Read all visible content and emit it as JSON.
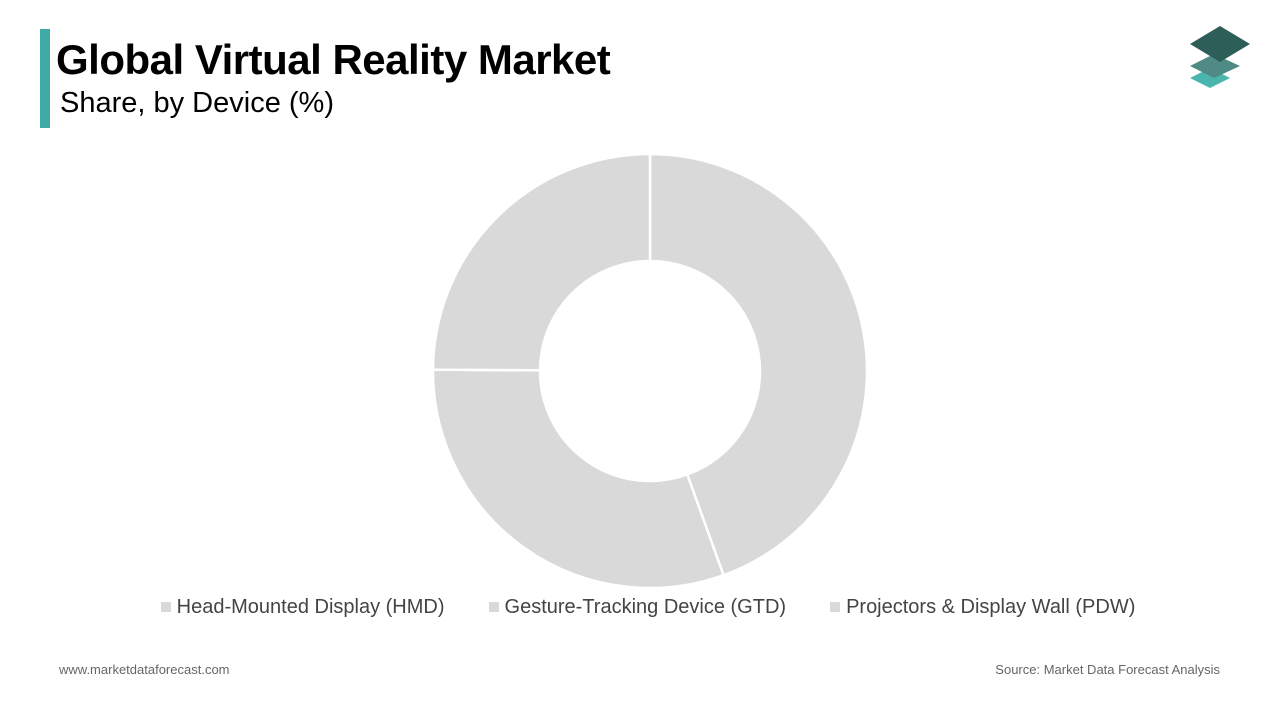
{
  "header": {
    "title": "Global Virtual Reality Market",
    "subtitle": "Share, by Device (%)"
  },
  "colors": {
    "accent": "#3fa9a4",
    "slice": "#d9d9d9",
    "slice_border": "#ffffff",
    "legend_swatch": "#d9d9d9",
    "logo_top": "#2e5e58",
    "logo_mid": "#4f8a84",
    "logo_bottom": "#49b5ad"
  },
  "icons": {
    "logo": "stacked-layers-icon"
  },
  "chart_data": {
    "type": "pie",
    "variant": "donut",
    "categories": [
      "Head-Mounted Display (HMD)",
      "Gesture-Tracking Device (GTD)",
      "Projectors & Display Wall (PDW)"
    ],
    "values": [
      44.5,
      30.6,
      24.9
    ],
    "unit": "%",
    "legend_position": "bottom"
  },
  "legend": {
    "items": [
      {
        "label": "Head-Mounted Display (HMD)"
      },
      {
        "label": "Gesture-Tracking Device (GTD)"
      },
      {
        "label": "Projectors & Display Wall (PDW)"
      }
    ]
  },
  "footer": {
    "website": "www.marketdataforecast.com",
    "source": "Source: Market Data Forecast Analysis"
  }
}
